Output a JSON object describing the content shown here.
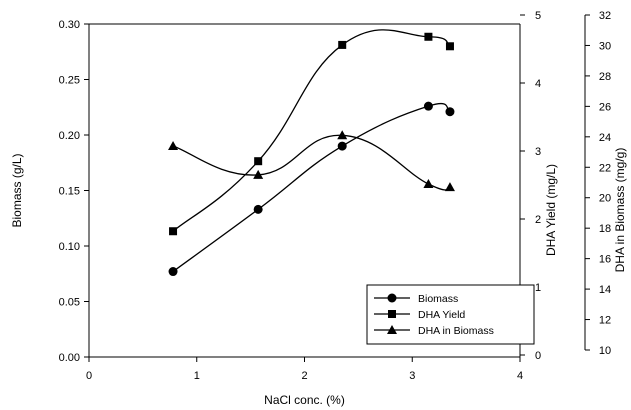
{
  "chart_data": {
    "type": "line",
    "xlabel": "NaCl conc. (%)",
    "xlim": [
      0,
      4
    ],
    "x_ticks": [
      "0",
      "1",
      "2",
      "3",
      "4"
    ],
    "axes": {
      "left": {
        "label": "Biomass (g/L)",
        "lim": [
          0,
          0.3
        ],
        "ticks": [
          "0.00",
          "0.05",
          "0.10",
          "0.15",
          "0.20",
          "0.25",
          "0.30"
        ]
      },
      "right1": {
        "label": "DHA Yield (mg/L)",
        "lim": [
          0,
          5
        ],
        "ticks": [
          "0",
          "1",
          "2",
          "3",
          "4",
          "5"
        ]
      },
      "right2": {
        "label": "DHA in Biomass (mg/g)",
        "lim": [
          10,
          32
        ],
        "ticks": [
          "10",
          "12",
          "14",
          "16",
          "18",
          "20",
          "22",
          "24",
          "26",
          "28",
          "30",
          "32"
        ]
      }
    },
    "grid": false,
    "legend_position": "bottom-right",
    "series": [
      {
        "name": "Biomass",
        "axis": "left",
        "marker": "circle",
        "x": [
          0.78,
          1.57,
          2.35,
          3.15,
          3.35
        ],
        "y": [
          0.077,
          0.133,
          0.19,
          0.226,
          0.221
        ]
      },
      {
        "name": "DHA Yield",
        "axis": "right1",
        "marker": "square",
        "x": [
          0.78,
          1.57,
          2.35,
          3.15,
          3.35
        ],
        "y": [
          1.82,
          2.85,
          4.56,
          4.68,
          4.54
        ]
      },
      {
        "name": "DHA in Biomass",
        "axis": "right2",
        "marker": "triangle",
        "x": [
          0.78,
          1.57,
          2.35,
          3.15,
          3.35
        ],
        "y": [
          23.4,
          21.5,
          24.1,
          20.9,
          20.7
        ]
      }
    ]
  }
}
